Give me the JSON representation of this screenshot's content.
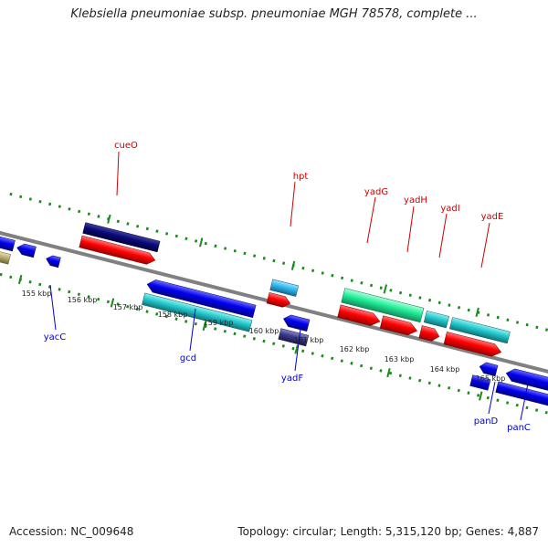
{
  "title": "Klebsiella pneumoniae subsp. pneumoniae MGH 78578, complete ...",
  "footer": {
    "accession": "Accession: NC_009648",
    "summary": "Topology: circular; Length: 5,315,120 bp; Genes: 4,887"
  },
  "ticks": [
    "155 kbp",
    "156 kbp",
    "157 kbp",
    "158 kbp",
    "159 kbp",
    "160 kbp",
    "161 kbp",
    "162 kbp",
    "163 kbp",
    "164 kbp",
    "165 kbp"
  ],
  "genes_forward": [
    "cueO",
    "hpt",
    "yadG",
    "yadH",
    "yadI",
    "yadE"
  ],
  "genes_reverse": [
    "yacC",
    "gcd",
    "yadF",
    "panD",
    "panC"
  ],
  "colors": {
    "label_forward": "#cc0000",
    "label_reverse": "#0000cc",
    "backbone": "#808080",
    "dots": "#1a8a1a",
    "red": "#ff0000",
    "blue": "#0000ee",
    "navy": "#0a0a78",
    "cyan": "#22c8cc",
    "sky": "#30b8ee",
    "spring": "#22ee99",
    "slate": "#3a3a88",
    "khaki": "#b8ae70"
  }
}
